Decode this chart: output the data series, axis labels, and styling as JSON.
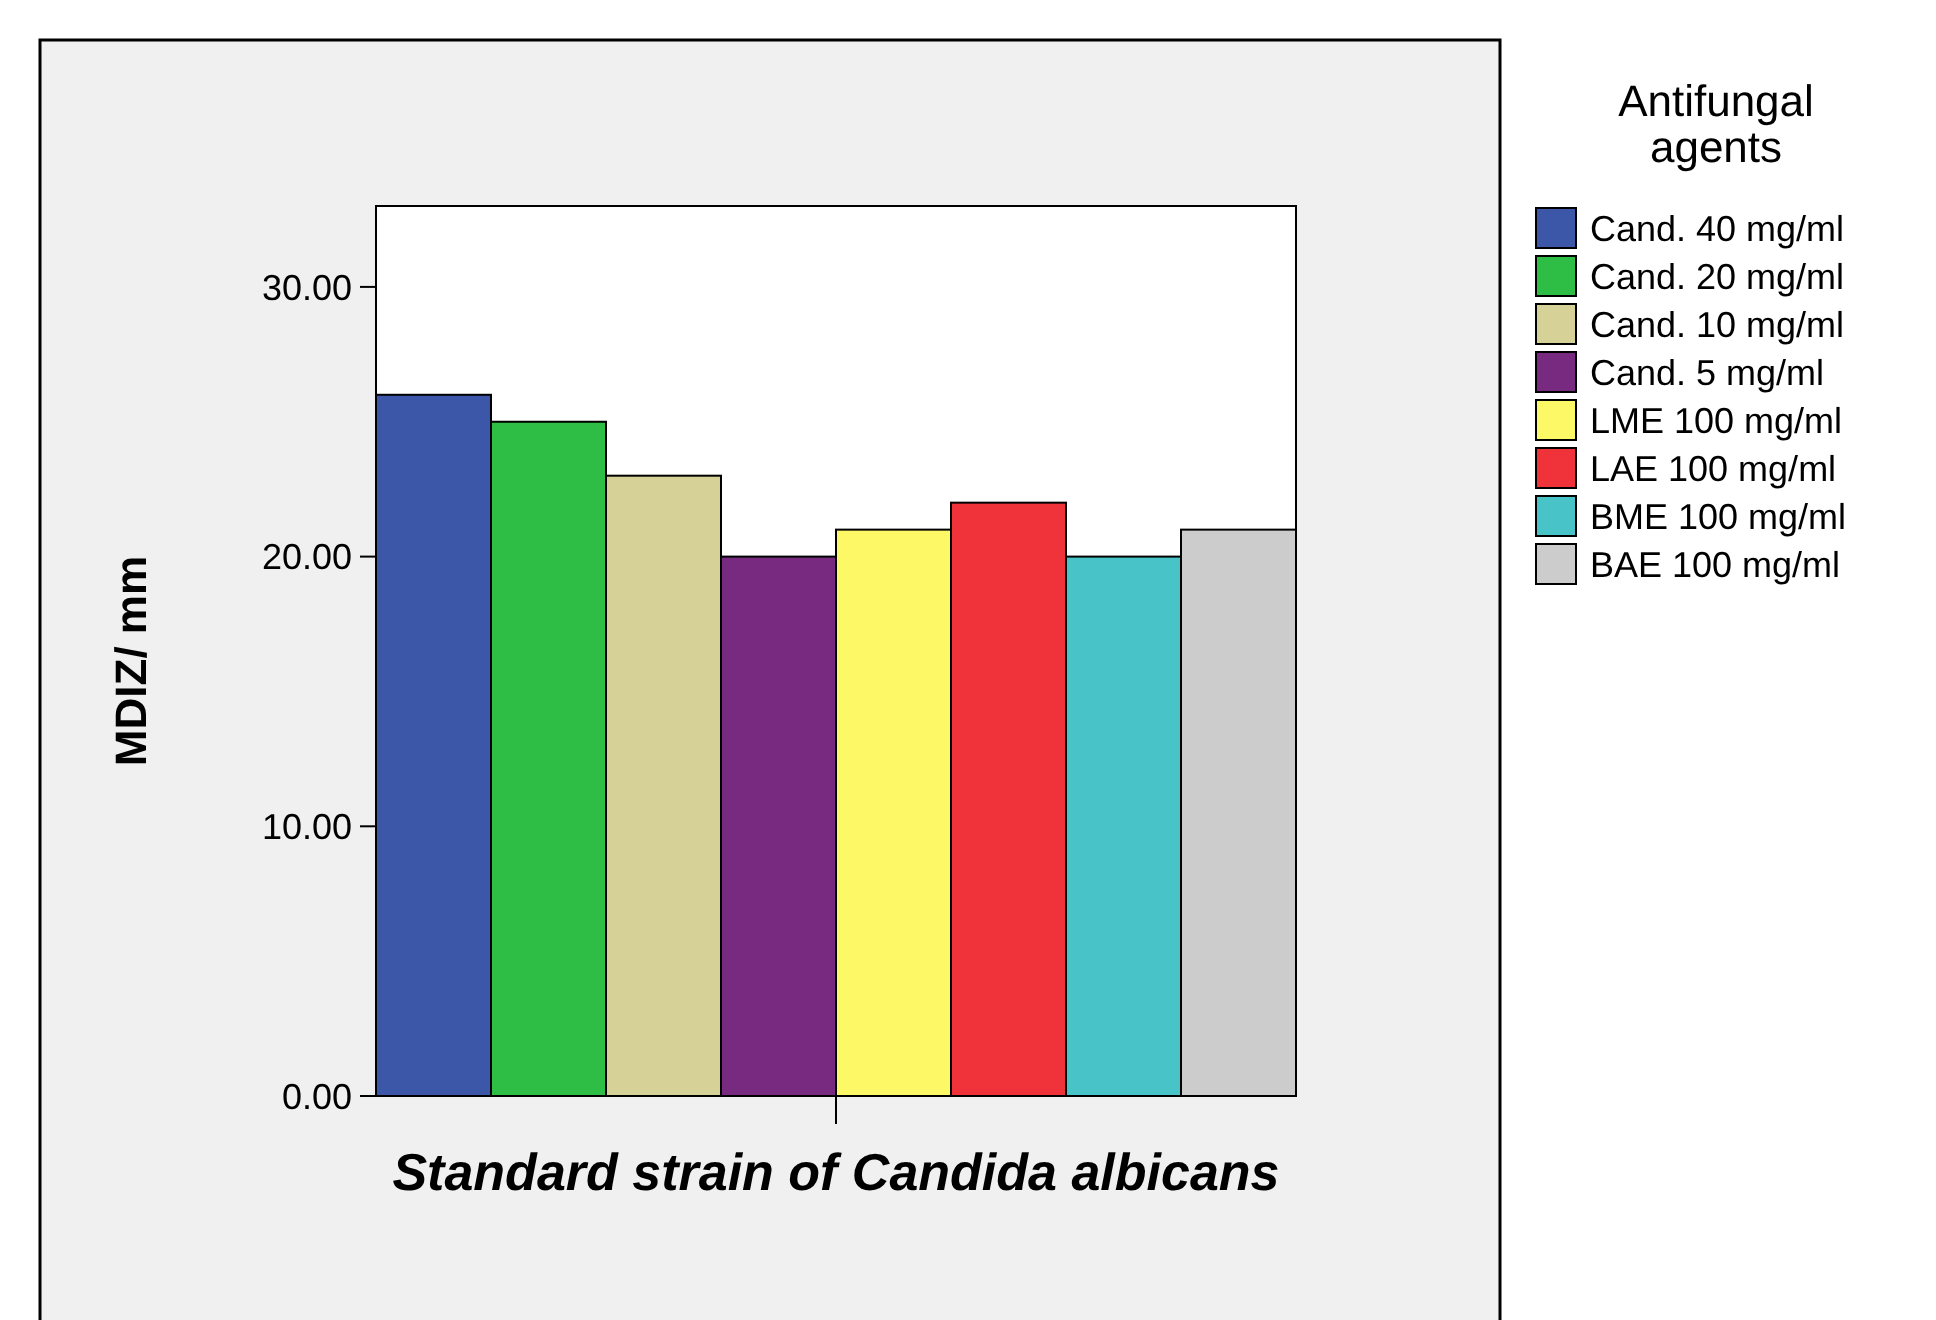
{
  "chart_data": {
    "type": "bar",
    "ylabel": "MDIZ/ mm",
    "xlabel": "Standard strain of Candida albicans",
    "legend_title": "Antifungal agents",
    "categories": [
      null
    ],
    "series": [
      {
        "name": "Cand. 40 mg/ml",
        "color": "#3c56a8",
        "values": [
          26
        ]
      },
      {
        "name": "Cand. 20 mg/ml",
        "color": "#2ebd45",
        "values": [
          25
        ]
      },
      {
        "name": "Cand. 10 mg/ml",
        "color": "#d6d196",
        "values": [
          23
        ]
      },
      {
        "name": "Cand. 5 mg/ml",
        "color": "#782a80",
        "values": [
          20
        ]
      },
      {
        "name": "LME 100 mg/ml",
        "color": "#fcf866",
        "values": [
          21
        ]
      },
      {
        "name": "LAE 100 mg/ml",
        "color": "#f0323a",
        "values": [
          22
        ]
      },
      {
        "name": "BME 100 mg/ml",
        "color": "#48c4c8",
        "values": [
          20
        ]
      },
      {
        "name": "BAE 100 mg/ml",
        "color": "#cccccc",
        "values": [
          21
        ]
      }
    ],
    "ylim": [
      0,
      33
    ],
    "yticks": [
      {
        "value": 0,
        "label": "0.00"
      },
      {
        "value": 10,
        "label": "10.00"
      },
      {
        "value": 20,
        "label": "20.00"
      },
      {
        "value": 30,
        "label": "30.00"
      }
    ],
    "legend": "right",
    "grid": false
  }
}
